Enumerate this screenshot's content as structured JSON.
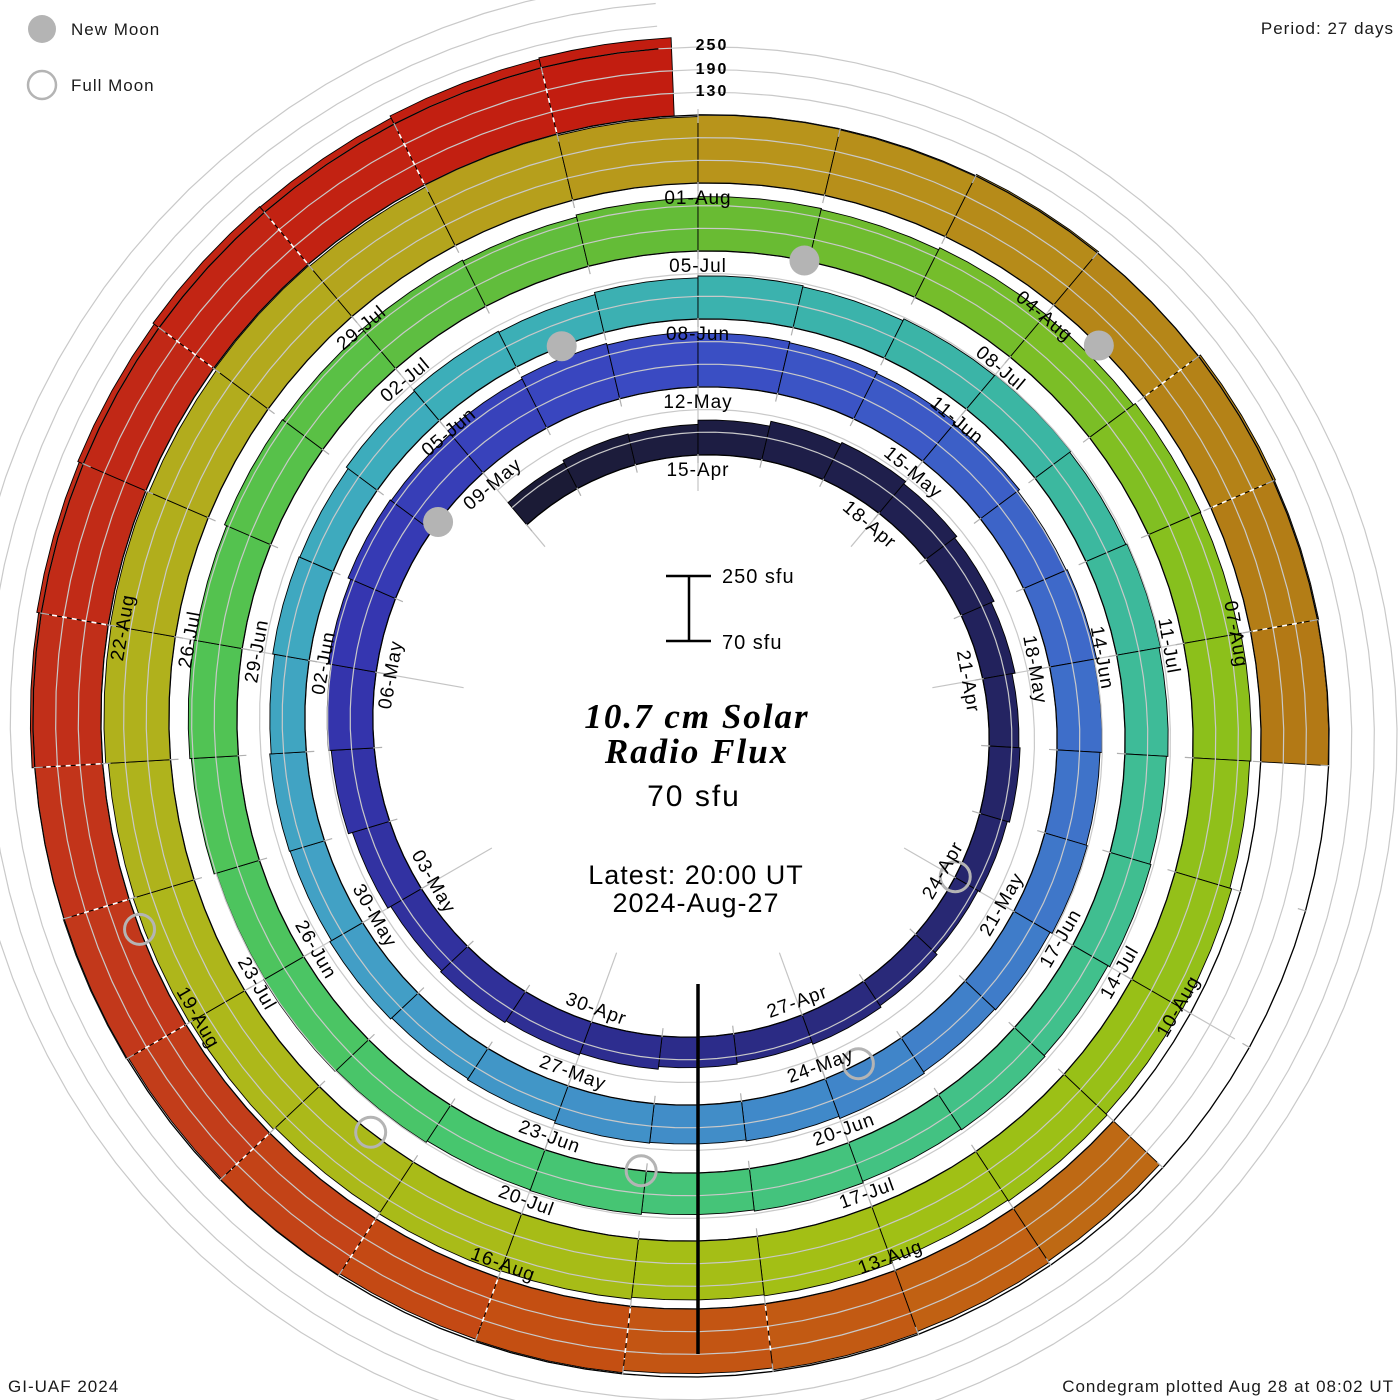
{
  "legend": {
    "new_moon": "New Moon",
    "full_moon": "Full Moon"
  },
  "header": {
    "period": "Period: 27 days"
  },
  "footer": {
    "left": "GI-UAF 2024",
    "right": "Condegram plotted Aug 28 at 08:02 UT"
  },
  "center": {
    "title1": "10.7 cm Solar",
    "title2": "Radio Flux",
    "flux": "70 sfu",
    "latest1": "Latest: 20:00 UT",
    "latest2": "2024-Aug-27",
    "scale_top": "250 sfu",
    "scale_bottom": "70 sfu"
  },
  "axis": {
    "radial_ticks": [
      "250",
      "190",
      "130"
    ]
  },
  "style": {
    "red_text": "#ee3a3a",
    "moon_gray": "#b4b4b4",
    "grid_gray": "#c9c9c9",
    "radial_gray": "#c4c4c4",
    "black": "#000000"
  },
  "chart_data": {
    "type": "spiral_bar",
    "title": "10.7 cm Solar Radio Flux",
    "period_days": 27,
    "flux_base_sfu": 70,
    "flux_gridlines_sfu": [
      130,
      190,
      250
    ],
    "start_date": "2024-04-12",
    "latest_reading": "2024-Aug-27 20:00 UT",
    "top_of_ring_dates": [
      "15-Apr",
      "12-May",
      "08-Jun",
      "05-Jul",
      "01-Aug"
    ],
    "values_sfu": [
      147,
      154,
      151,
      162,
      175,
      180,
      172,
      165,
      157,
      149,
      152,
      146,
      141,
      148,
      153,
      147,
      151,
      158,
      163,
      168,
      164,
      173,
      184,
      191,
      199,
      207,
      204,
      215,
      220,
      216,
      212,
      209,
      205,
      199,
      193,
      196,
      189,
      184,
      187,
      181,
      178,
      182,
      176,
      173,
      175,
      169,
      166,
      170,
      165,
      167,
      163,
      168,
      166,
      172,
      176,
      173,
      179,
      184,
      181,
      186,
      189,
      185,
      188,
      184,
      180,
      183,
      178,
      181,
      179,
      183,
      180,
      185,
      183,
      188,
      192,
      189,
      195,
      199,
      197,
      203,
      201,
      207,
      204,
      210,
      214,
      211,
      217,
      215,
      221,
      219,
      224,
      221,
      226,
      223,
      227,
      224,
      229,
      226,
      231,
      234,
      230,
      236,
      239,
      235,
      242,
      245,
      241,
      247,
      244,
      249,
      246,
      251,
      248,
      254,
      250,
      256,
      253,
      249,
      null,
      null,
      null,
      238,
      242,
      246,
      241,
      247,
      244,
      249,
      246,
      252,
      250,
      257,
      262,
      266,
      270,
      268,
      274,
      277
    ],
    "last_day_fraction": 0.833,
    "date_labels": [
      "15-Apr",
      "18-Apr",
      "21-Apr",
      "24-Apr",
      "27-Apr",
      "30-Apr",
      "03-May",
      "06-May",
      "09-May",
      "12-May",
      "15-May",
      "18-May",
      "21-May",
      "24-May",
      "27-May",
      "30-May",
      "02-Jun",
      "05-Jun",
      "08-Jun",
      "11-Jun",
      "14-Jun",
      "17-Jun",
      "20-Jun",
      "23-Jun",
      "26-Jun",
      "29-Jun",
      "02-Jul",
      "05-Jul",
      "08-Jul",
      "11-Jul",
      "14-Jul",
      "17-Jul",
      "20-Jul",
      "23-Jul",
      "26-Jul",
      "29-Jul",
      "01-Aug",
      "04-Aug",
      "07-Aug",
      "10-Aug",
      "13-Aug",
      "16-Aug",
      "19-Aug",
      "22-Aug"
    ],
    "first_label_offset_days": 3,
    "label_step_days": 3,
    "moons": {
      "new_moon_days": [
        26.14,
        55.53,
        84.96,
        114.47
      ],
      "full_moon_days": [
        11.99,
        41.58,
        71.05,
        100.43,
        129.77
      ]
    },
    "dashed_white_days": [
      115,
      116,
      117,
      124,
      125,
      126,
      127,
      128,
      129,
      130,
      131,
      132,
      134,
      135,
      136,
      137
    ],
    "color_keyframes": [
      [
        0,
        "#1b1b34"
      ],
      [
        6,
        "#1f1f4e"
      ],
      [
        12,
        "#272770"
      ],
      [
        18,
        "#2e2e92"
      ],
      [
        24,
        "#3434ae"
      ],
      [
        30,
        "#3a4cc4"
      ],
      [
        36,
        "#3e6cc9"
      ],
      [
        42,
        "#4087c9"
      ],
      [
        48,
        "#42a0c6"
      ],
      [
        54,
        "#3cadbb"
      ],
      [
        60,
        "#3bb5a5"
      ],
      [
        66,
        "#40bf8e"
      ],
      [
        72,
        "#46c671"
      ],
      [
        78,
        "#52c351"
      ],
      [
        84,
        "#66bb35"
      ],
      [
        90,
        "#8ac01c"
      ],
      [
        96,
        "#a2c014"
      ],
      [
        102,
        "#aeb71b"
      ],
      [
        108,
        "#b3a81d"
      ],
      [
        111,
        "#b8961b"
      ],
      [
        117,
        "#b27b15"
      ],
      [
        121,
        "#bc6d14"
      ],
      [
        123,
        "#c25d13"
      ],
      [
        126,
        "#c44c12"
      ],
      [
        129,
        "#c23a1b"
      ],
      [
        132,
        "#c12d18"
      ],
      [
        137,
        "#c21d10"
      ]
    ]
  }
}
